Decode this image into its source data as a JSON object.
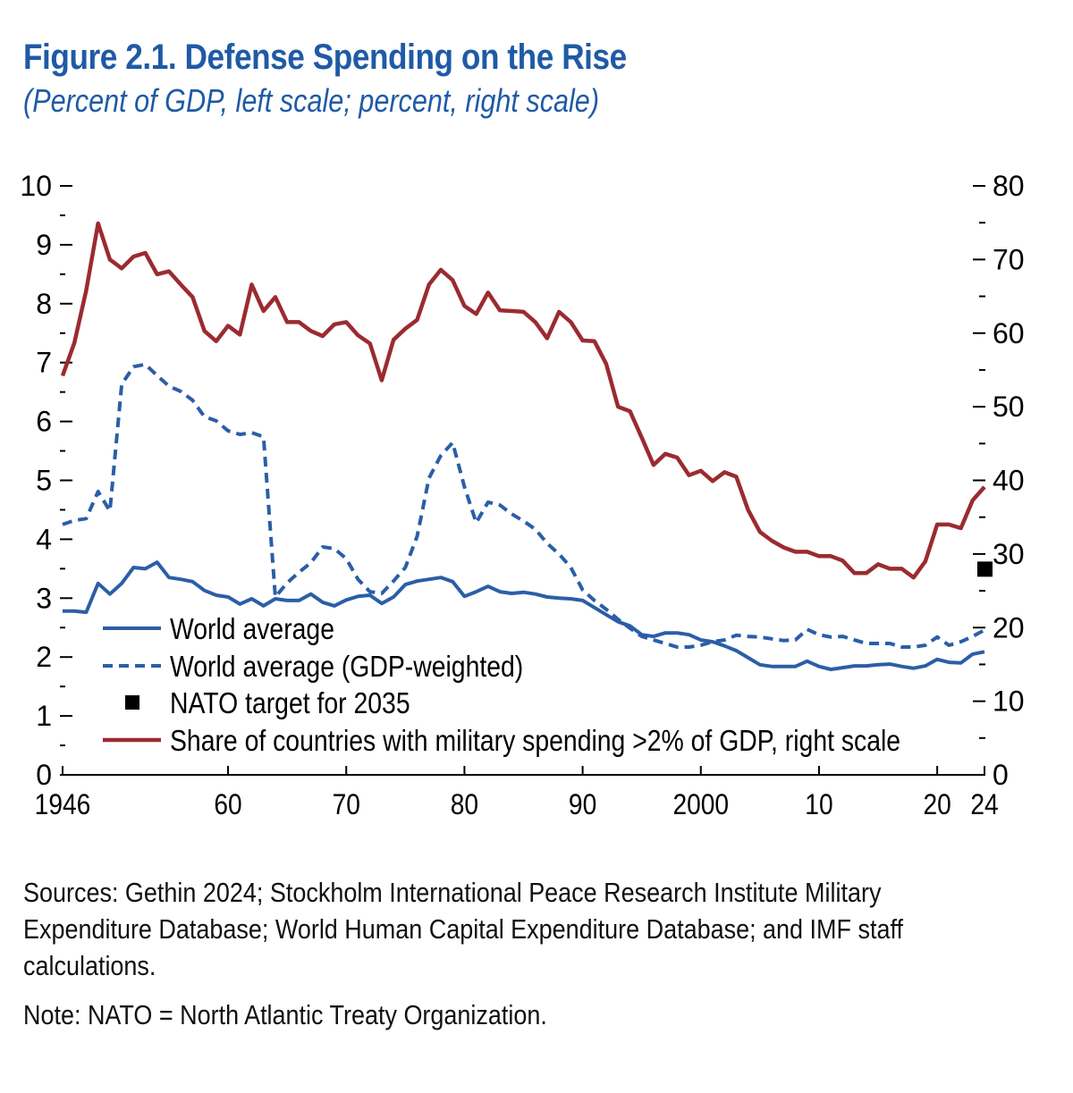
{
  "title": "Figure 2.1.  Defense Spending on the Rise",
  "subtitle": "(Percent of GDP, left scale; percent, right scale)",
  "sources": "Sources: Gethin 2024; Stockholm International Peace Research Institute Military Expenditure Database; World Human Capital Expenditure Database; and IMF staff calculations.",
  "note": "Note: NATO = North Atlantic Treaty Organization.",
  "chart_data": {
    "type": "line",
    "title": "Figure 2.1.  Defense Spending on the Rise",
    "subtitle": "(Percent of GDP, left scale; percent, right scale)",
    "xlim": [
      1946,
      2024
    ],
    "ylim_left": [
      0,
      10
    ],
    "ylim_right": [
      0,
      80
    ],
    "grid": false,
    "legend_placement": "bottom-left",
    "x_ticks": [
      1946,
      1960,
      1970,
      1980,
      1990,
      2000,
      2010,
      2020,
      2024
    ],
    "x_tick_labels": [
      "1946",
      "60",
      "70",
      "80",
      "90",
      "2000",
      "10",
      "20",
      "24"
    ],
    "y_left_ticks": [
      "0",
      "1",
      "2",
      "3",
      "4",
      "5",
      "6",
      "7",
      "8",
      "9",
      "10"
    ],
    "y_right_ticks": [
      "0",
      "10",
      "20",
      "30",
      "40",
      "50",
      "60",
      "70",
      "80"
    ],
    "colors": {
      "world_average": "#2b5ea7",
      "gdp_weighted": "#2b5ea7",
      "share": "#9b2b31",
      "nato": "#000000",
      "title": "#1f5aa6"
    },
    "x": [
      1946,
      1947,
      1948,
      1949,
      1950,
      1951,
      1952,
      1953,
      1954,
      1955,
      1956,
      1957,
      1958,
      1959,
      1960,
      1961,
      1962,
      1963,
      1964,
      1965,
      1966,
      1967,
      1968,
      1969,
      1970,
      1971,
      1972,
      1973,
      1974,
      1975,
      1976,
      1977,
      1978,
      1979,
      1980,
      1981,
      1982,
      1983,
      1984,
      1985,
      1986,
      1987,
      1988,
      1989,
      1990,
      1991,
      1992,
      1993,
      1994,
      1995,
      1996,
      1997,
      1998,
      1999,
      2000,
      2001,
      2002,
      2003,
      2004,
      2005,
      2006,
      2007,
      2008,
      2009,
      2010,
      2011,
      2012,
      2013,
      2014,
      2015,
      2016,
      2017,
      2018,
      2019,
      2020,
      2021,
      2022,
      2023,
      2024
    ],
    "series": [
      {
        "name": "World average",
        "axis": "left",
        "style": "solid",
        "values": [
          2.78,
          2.78,
          2.76,
          3.25,
          3.07,
          3.25,
          3.52,
          3.5,
          3.61,
          3.35,
          3.32,
          3.28,
          3.13,
          3.05,
          3.02,
          2.9,
          2.99,
          2.87,
          2.99,
          2.96,
          2.96,
          3.07,
          2.93,
          2.87,
          2.97,
          3.03,
          3.05,
          2.91,
          3.02,
          3.23,
          3.29,
          3.32,
          3.35,
          3.28,
          3.03,
          3.11,
          3.2,
          3.11,
          3.08,
          3.1,
          3.07,
          3.02,
          3.0,
          2.99,
          2.96,
          2.84,
          2.72,
          2.6,
          2.53,
          2.38,
          2.35,
          2.41,
          2.41,
          2.38,
          2.29,
          2.26,
          2.19,
          2.11,
          1.99,
          1.87,
          1.84,
          1.84,
          1.84,
          1.93,
          1.84,
          1.79,
          1.82,
          1.85,
          1.85,
          1.87,
          1.88,
          1.84,
          1.81,
          1.85,
          1.96,
          1.91,
          1.9,
          2.05,
          2.09
        ]
      },
      {
        "name": "World average (GDP-weighted)",
        "axis": "left",
        "style": "dashed",
        "values": [
          4.25,
          4.32,
          4.35,
          4.81,
          4.48,
          6.63,
          6.93,
          6.97,
          6.78,
          6.6,
          6.51,
          6.36,
          6.08,
          6.01,
          5.84,
          5.78,
          5.81,
          5.74,
          3.02,
          3.26,
          3.44,
          3.6,
          3.87,
          3.84,
          3.67,
          3.32,
          3.11,
          3.08,
          3.29,
          3.52,
          4.05,
          5.04,
          5.42,
          5.64,
          4.89,
          4.28,
          4.63,
          4.58,
          4.43,
          4.31,
          4.17,
          3.93,
          3.75,
          3.52,
          3.14,
          2.96,
          2.81,
          2.64,
          2.49,
          2.35,
          2.29,
          2.23,
          2.17,
          2.17,
          2.2,
          2.26,
          2.29,
          2.37,
          2.35,
          2.34,
          2.31,
          2.28,
          2.29,
          2.47,
          2.38,
          2.34,
          2.35,
          2.29,
          2.23,
          2.23,
          2.23,
          2.17,
          2.17,
          2.2,
          2.34,
          2.2,
          2.26,
          2.35,
          2.46
        ]
      },
      {
        "name": "Share of countries with military spending >2% of GDP, right scale",
        "axis": "right",
        "style": "solid",
        "values": [
          54.2,
          58.7,
          65.8,
          74.9,
          70,
          68.8,
          70.4,
          70.9,
          68,
          68.4,
          66.6,
          64.9,
          60.3,
          58.9,
          61,
          59.8,
          66.6,
          63,
          64.9,
          61.5,
          61.5,
          60.3,
          59.6,
          61.2,
          61.5,
          59.7,
          58.6,
          53.6,
          59.1,
          60.6,
          61.8,
          66.6,
          68.6,
          67.2,
          63.7,
          62.6,
          65.5,
          63.1,
          63,
          62.9,
          61.5,
          59.3,
          62.9,
          61.5,
          59,
          58.9,
          55.8,
          50,
          49.4,
          45.8,
          42.1,
          43.6,
          43.1,
          40.7,
          41.3,
          39.9,
          41.1,
          40.5,
          36,
          33,
          31.8,
          30.9,
          30.3,
          30.3,
          29.7,
          29.7,
          29.1,
          27.4,
          27.4,
          28.6,
          28,
          28,
          26.8,
          29,
          34,
          34,
          33.5,
          37.3,
          39.1
        ]
      }
    ],
    "markers": [
      {
        "name": "NATO target for 2035",
        "axis": "left",
        "value": 3.5,
        "shape": "square"
      }
    ],
    "legend": [
      "World average",
      "World average (GDP-weighted)",
      "NATO target for 2035",
      "Share of countries with military spending >2% of GDP, right scale"
    ]
  }
}
